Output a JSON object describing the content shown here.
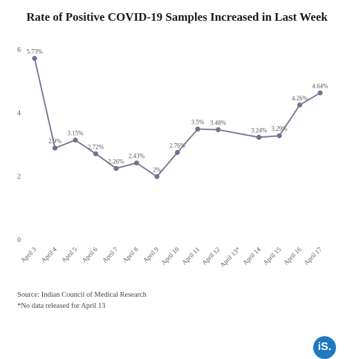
{
  "title": "Rate of Positive COVID-19 Samples Increased in Last Week",
  "source": "Source: Indian Council of Medical Research",
  "footnote": "*No data released for April 13",
  "logo_text": "iS.",
  "colors": {
    "line": "#747b93",
    "marker": "#6d7490",
    "axis_text": "#555555"
  },
  "chart_data": {
    "type": "line",
    "title": "Rate of Positive COVID-19 Samples Increased in Last Week",
    "xlabel": "",
    "ylabel": "",
    "ylim": [
      0,
      6
    ],
    "yticks": [
      0,
      2,
      4,
      6
    ],
    "categories": [
      "April 3",
      "April 4",
      "April 5",
      "April 6",
      "April 7",
      "April 8",
      "April 9",
      "April 10",
      "April 11",
      "April 12",
      "April 13*",
      "April 14",
      "April 15",
      "April 16",
      "April 17"
    ],
    "values": [
      5.73,
      2.9,
      3.15,
      2.72,
      2.26,
      2.43,
      2,
      2.76,
      3.5,
      3.48,
      null,
      3.24,
      3.29,
      4.26,
      4.64
    ],
    "labels": [
      "5.73%",
      "2.9%",
      "3.15%",
      "2.72%",
      "2.26%",
      "2.43%",
      "2%",
      "2.76%",
      "3.5%",
      "3.48%",
      "",
      "3.24%",
      "3.29%",
      "4.26%",
      "4.64%"
    ],
    "grid": false,
    "legend": "none"
  }
}
